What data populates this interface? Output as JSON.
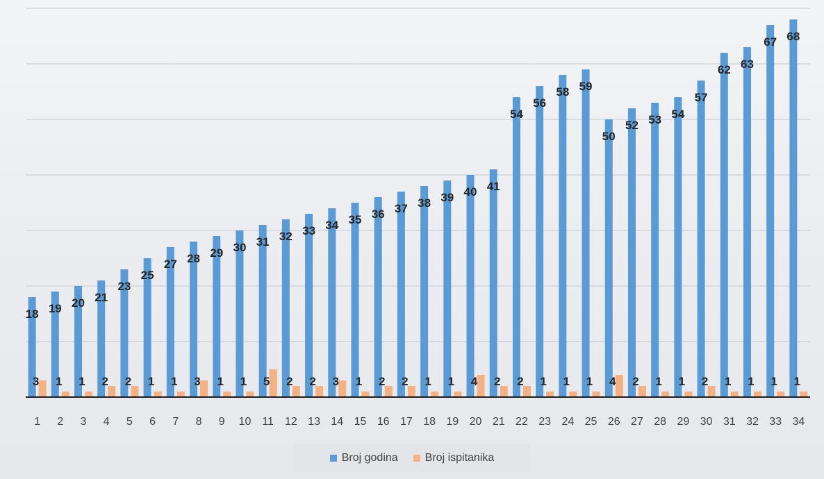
{
  "chart_data": {
    "type": "bar",
    "categories": [
      "1",
      "2",
      "3",
      "4",
      "5",
      "6",
      "7",
      "8",
      "9",
      "10",
      "11",
      "12",
      "13",
      "14",
      "15",
      "16",
      "17",
      "18",
      "19",
      "20",
      "21",
      "22",
      "23",
      "24",
      "25",
      "26",
      "27",
      "28",
      "29",
      "30",
      "31",
      "32",
      "33",
      "34"
    ],
    "series": [
      {
        "name": "Broj godina",
        "color": "#5b9bd5",
        "values": [
          18,
          19,
          20,
          21,
          23,
          25,
          27,
          28,
          29,
          30,
          31,
          32,
          33,
          34,
          35,
          36,
          37,
          38,
          39,
          40,
          41,
          54,
          56,
          58,
          59,
          50,
          52,
          53,
          54,
          57,
          62,
          63,
          67,
          68
        ]
      },
      {
        "name": "Broj ispitanika",
        "color": "#f4b183",
        "values": [
          3,
          1,
          1,
          2,
          2,
          1,
          1,
          3,
          1,
          1,
          5,
          2,
          2,
          3,
          1,
          2,
          2,
          1,
          1,
          4,
          2,
          2,
          1,
          1,
          1,
          4,
          2,
          1,
          1,
          2,
          1,
          1,
          1,
          1
        ]
      }
    ],
    "ylim": [
      0,
      70
    ],
    "grid": true,
    "legend_position": "bottom"
  }
}
